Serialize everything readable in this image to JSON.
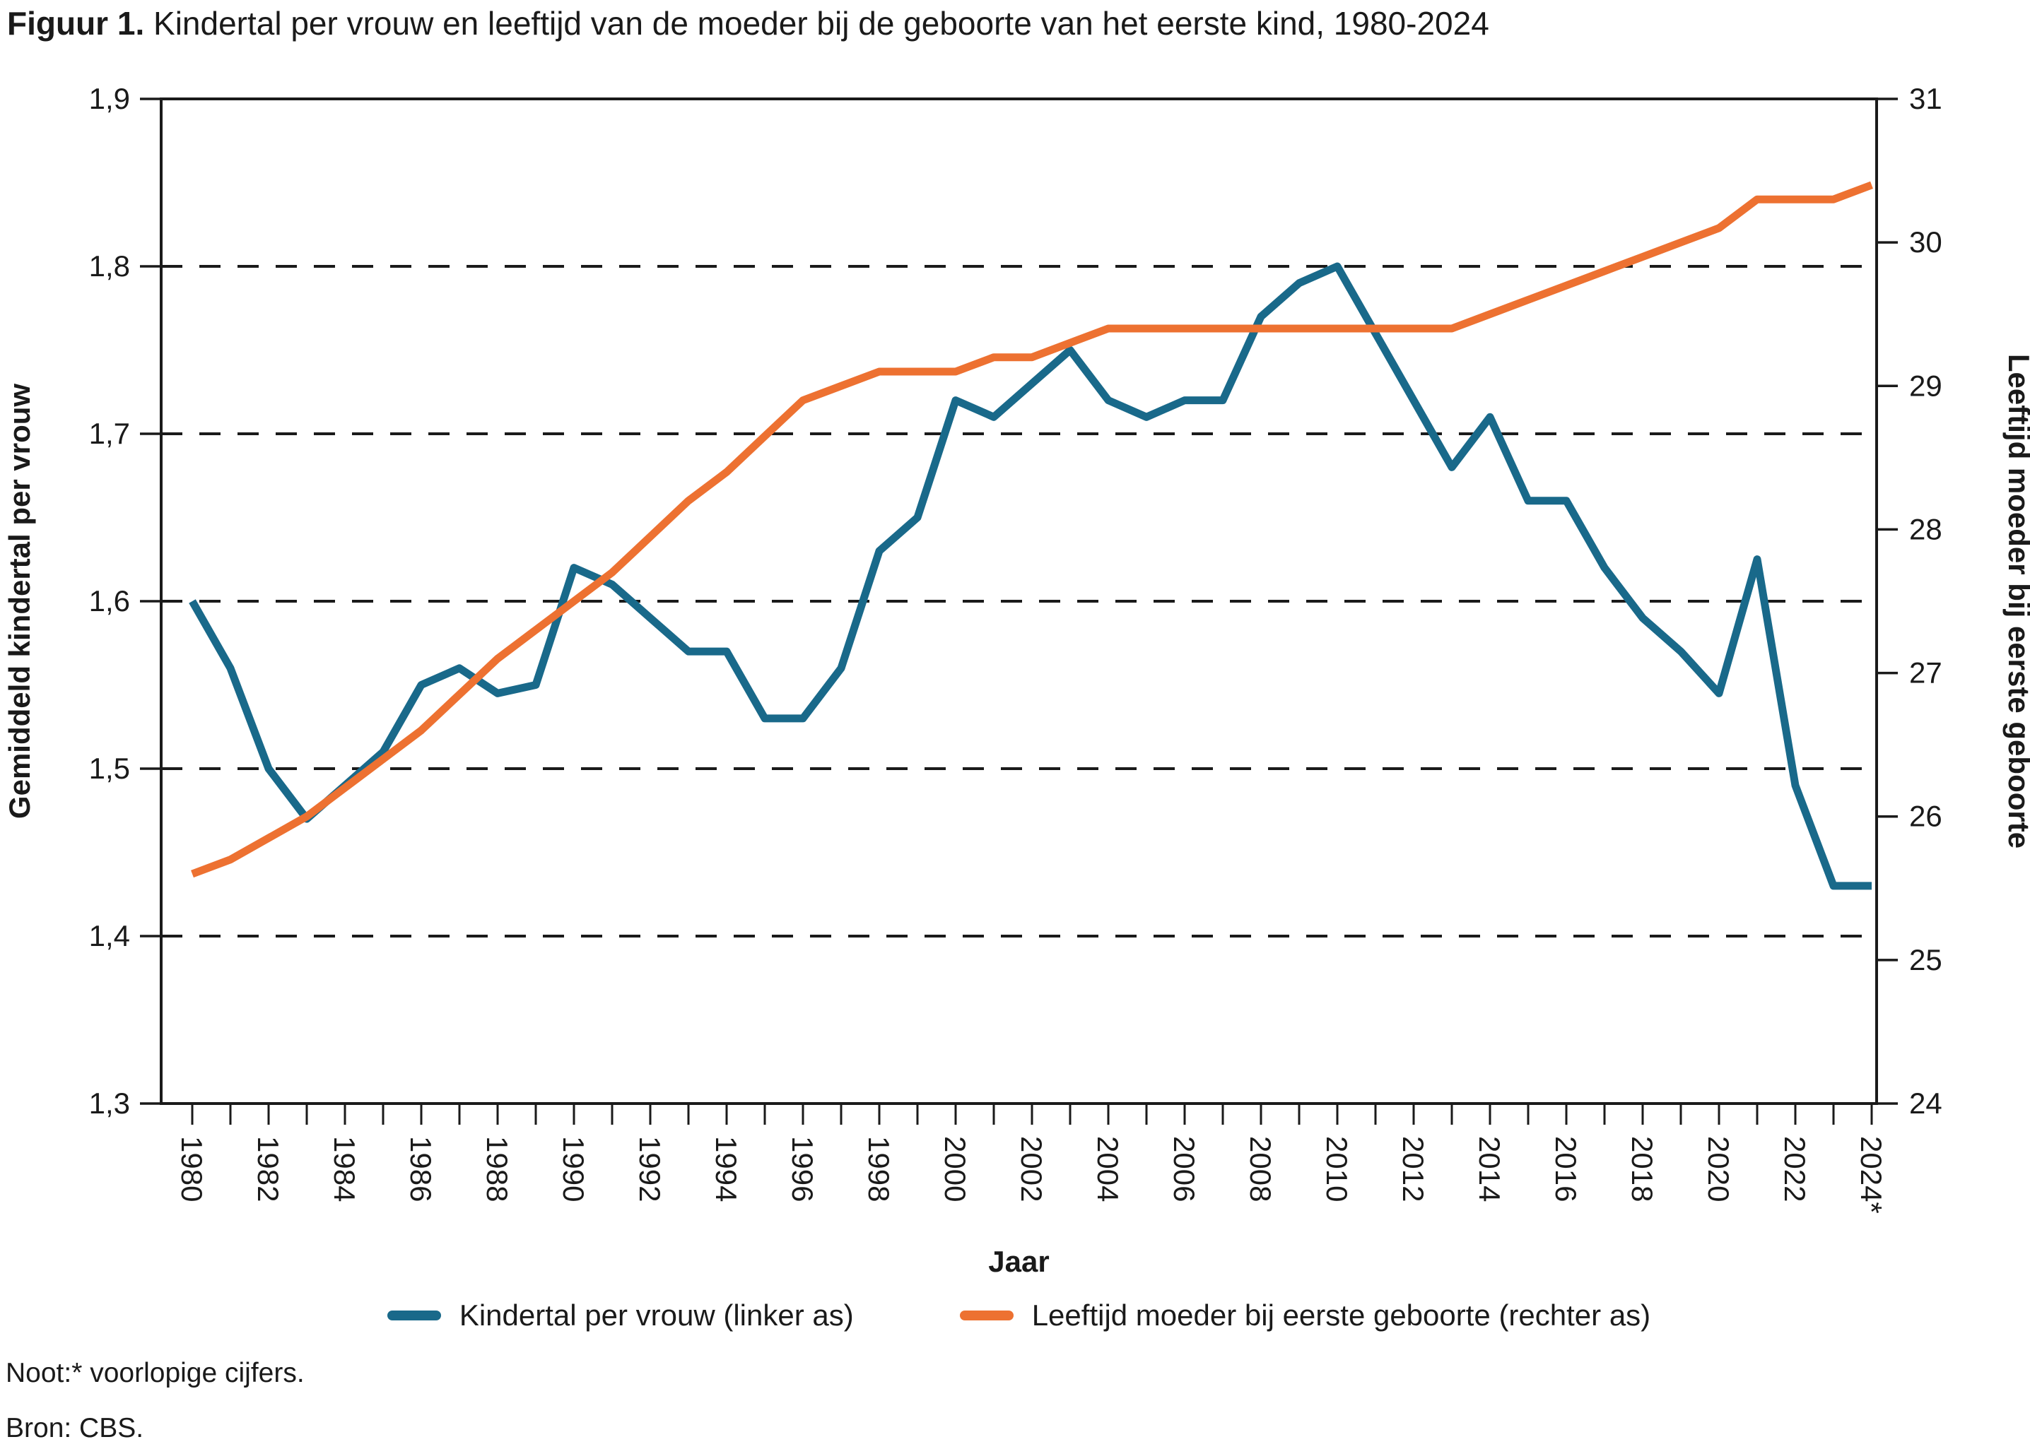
{
  "title": {
    "prefix": "Figuur 1.",
    "rest": " Kindertal per vrouw en leeftijd van de moeder bij de geboorte van het eerste kind, 1980-2024"
  },
  "left_axis": {
    "label": "Gemiddeld kindertal per vrouw",
    "tick_labels": [
      "1,9",
      "1,8",
      "1,7",
      "1,6",
      "1,5",
      "1,4",
      "1,3"
    ],
    "min": 1.3,
    "max": 1.9
  },
  "right_axis": {
    "label": "Leeftijd moeder bij eerste geboorte",
    "tick_labels": [
      "31",
      "30",
      "29",
      "28",
      "27",
      "26",
      "25",
      "24"
    ],
    "min": 24,
    "max": 31
  },
  "x_axis": {
    "label": "Jaar",
    "tick_labels_every_2_years": [
      "1980",
      "1982",
      "1984",
      "1986",
      "1988",
      "1990",
      "1992",
      "1994",
      "1996",
      "1998",
      "2000",
      "2002",
      "2004",
      "2006",
      "2008",
      "2010",
      "2012",
      "2014",
      "2016",
      "2018",
      "2020",
      "2022",
      "2024*"
    ]
  },
  "legend": [
    {
      "label": "Kindertal per vrouw (linker as)",
      "color": "#19698a"
    },
    {
      "label": "Leeftijd moeder bij eerste geboorte (rechter as)",
      "color": "#ed7131"
    }
  ],
  "notes": {
    "noot": "Noot:* voorlopige cijfers.",
    "bron": "Bron: CBS."
  },
  "chart_data": {
    "type": "line",
    "title": "Kindertal per vrouw en leeftijd van de moeder bij de geboorte van het eerste kind, 1980-2024",
    "xlabel": "Jaar",
    "ylabel_left": "Gemiddeld kindertal per vrouw",
    "ylabel_right": "Leeftijd moeder bij eerste geboorte",
    "left_ylim": [
      1.3,
      1.9
    ],
    "right_ylim": [
      24,
      31
    ],
    "grid": "horizontal dashed at left-axis 1.4 to 1.8",
    "legend_position": "bottom center",
    "x": [
      1980,
      1981,
      1982,
      1983,
      1984,
      1985,
      1986,
      1987,
      1988,
      1989,
      1990,
      1991,
      1992,
      1993,
      1994,
      1995,
      1996,
      1997,
      1998,
      1999,
      2000,
      2001,
      2002,
      2003,
      2004,
      2005,
      2006,
      2007,
      2008,
      2009,
      2010,
      2011,
      2012,
      2013,
      2014,
      2015,
      2016,
      2017,
      2018,
      2019,
      2020,
      2021,
      2022,
      2023,
      2024
    ],
    "series": [
      {
        "name": "Kindertal per vrouw (linker as)",
        "axis": "left",
        "color": "#19698a",
        "values": [
          1.6,
          1.56,
          1.5,
          1.47,
          1.49,
          1.51,
          1.55,
          1.56,
          1.545,
          1.55,
          1.62,
          1.61,
          1.59,
          1.57,
          1.57,
          1.53,
          1.53,
          1.56,
          1.63,
          1.65,
          1.72,
          1.71,
          1.73,
          1.75,
          1.72,
          1.71,
          1.72,
          1.72,
          1.77,
          1.79,
          1.8,
          1.76,
          1.72,
          1.68,
          1.71,
          1.66,
          1.66,
          1.62,
          1.59,
          1.57,
          1.545,
          1.625,
          1.49,
          1.43,
          1.43
        ]
      },
      {
        "name": "Leeftijd moeder bij eerste geboorte (rechter as)",
        "axis": "right",
        "color": "#ed7131",
        "values": [
          25.6,
          25.7,
          25.85,
          26.0,
          26.2,
          26.4,
          26.6,
          26.85,
          27.1,
          27.3,
          27.5,
          27.7,
          27.95,
          28.2,
          28.4,
          28.65,
          28.9,
          29.0,
          29.1,
          29.1,
          29.1,
          29.2,
          29.2,
          29.3,
          29.4,
          29.4,
          29.4,
          29.4,
          29.4,
          29.4,
          29.4,
          29.4,
          29.4,
          29.4,
          29.5,
          29.6,
          29.7,
          29.8,
          29.9,
          30.0,
          30.1,
          30.3,
          30.3,
          30.3,
          30.4
        ]
      }
    ]
  }
}
